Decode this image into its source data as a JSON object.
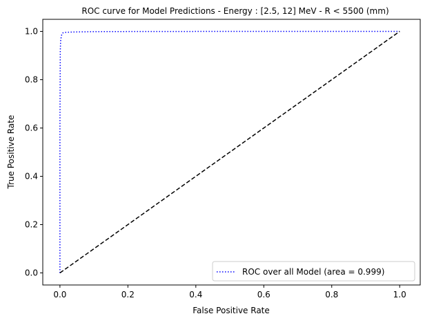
{
  "chart_data": {
    "type": "line",
    "title": "ROC curve for Model Predictions - Energy : [2.5, 12] MeV - R < 5500 (mm)",
    "xlabel": "False Positive Rate",
    "ylabel": "True Positive Rate",
    "xlim": [
      -0.0505,
      1.0605
    ],
    "ylim": [
      -0.05,
      1.05
    ],
    "xticks": [
      0.0,
      0.2,
      0.4,
      0.6,
      0.8,
      1.0
    ],
    "yticks": [
      0.0,
      0.2,
      0.4,
      0.6,
      0.8,
      1.0
    ],
    "tick_labels_x": [
      "0.0",
      "0.2",
      "0.4",
      "0.6",
      "0.8",
      "1.0"
    ],
    "tick_labels_y": [
      "0.0",
      "0.2",
      "0.4",
      "0.6",
      "0.8",
      "1.0"
    ],
    "grid": false,
    "legend": {
      "placement": "lower-right"
    },
    "series": [
      {
        "name": "ROC over all Model (area = 0.999)",
        "color": "#0000ff",
        "style": "dotted",
        "x": [
          0.0,
          0.0,
          0.001,
          0.002,
          0.004,
          0.006,
          0.009,
          0.015,
          0.03,
          0.06,
          0.1,
          0.2,
          0.5,
          1.0
        ],
        "y": [
          0.0,
          0.6,
          0.92,
          0.96,
          0.98,
          0.99,
          0.994,
          0.996,
          0.997,
          0.998,
          0.999,
          0.9995,
          1.0,
          1.0
        ]
      },
      {
        "name": "",
        "color": "#000000",
        "style": "dashed",
        "x": [
          0.0,
          1.0
        ],
        "y": [
          0.0,
          1.0
        ]
      }
    ]
  }
}
